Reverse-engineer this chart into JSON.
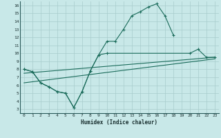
{
  "bg_color": "#c8e8e8",
  "grid_color": "#a8cccc",
  "line_color": "#1a6b5a",
  "xlabel": "Humidex (Indice chaleur)",
  "xlim": [
    -0.5,
    23.5
  ],
  "ylim": [
    2.5,
    16.5
  ],
  "xticks": [
    0,
    1,
    2,
    3,
    4,
    5,
    6,
    7,
    8,
    9,
    10,
    11,
    12,
    13,
    14,
    15,
    16,
    17,
    18,
    19,
    20,
    21,
    22,
    23
  ],
  "yticks": [
    3,
    4,
    5,
    6,
    7,
    8,
    9,
    10,
    11,
    12,
    13,
    14,
    15,
    16
  ],
  "line1_x": [
    0,
    1,
    2,
    3,
    4,
    5,
    6,
    7,
    8,
    9,
    10,
    11,
    12,
    13,
    14,
    15,
    16,
    17,
    18
  ],
  "line1_y": [
    8.0,
    7.7,
    6.3,
    5.8,
    5.2,
    5.0,
    3.2,
    5.2,
    7.8,
    9.8,
    11.5,
    11.5,
    13.0,
    14.7,
    15.2,
    15.8,
    16.2,
    14.7,
    12.3
  ],
  "line2_x": [
    0,
    1,
    2,
    3,
    4,
    5,
    6,
    7,
    8,
    9,
    10,
    20,
    21,
    22,
    23
  ],
  "line2_y": [
    8.0,
    7.7,
    6.3,
    5.8,
    5.2,
    5.0,
    3.2,
    5.2,
    7.8,
    9.8,
    10.0,
    10.0,
    10.5,
    9.5,
    9.5
  ],
  "line3_x": [
    0,
    23
  ],
  "line3_y": [
    6.3,
    9.3
  ],
  "line4_x": [
    0,
    23
  ],
  "line4_y": [
    7.5,
    9.5
  ]
}
